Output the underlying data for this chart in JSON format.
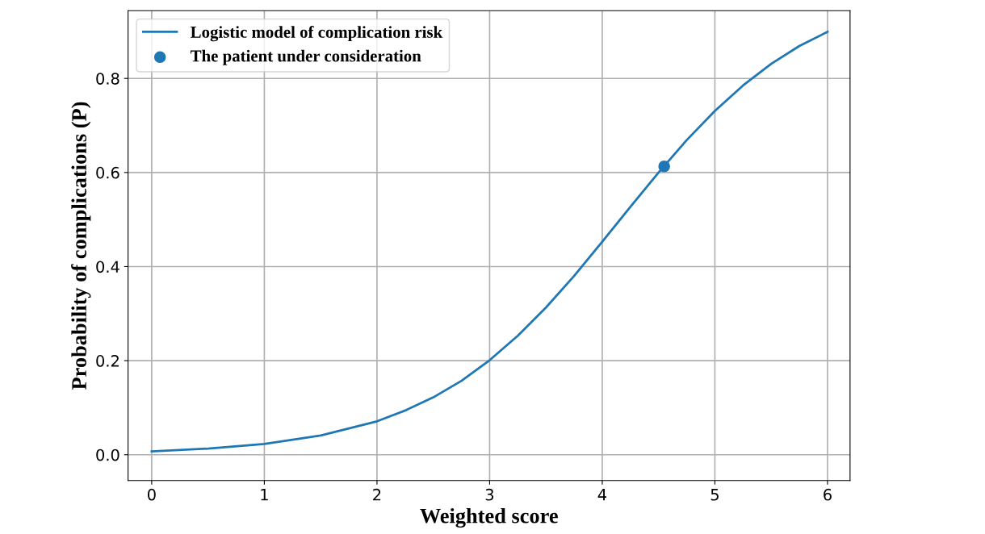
{
  "chart_data": {
    "type": "line",
    "xlabel": "Weighted score",
    "ylabel": "Probability of complications (P)",
    "x": [
      0,
      0.5,
      1,
      1.5,
      2,
      2.25,
      2.5,
      2.75,
      3,
      3.25,
      3.5,
      3.75,
      4,
      4.25,
      4.5,
      4.75,
      5,
      5.25,
      5.5,
      5.75,
      6
    ],
    "series": [
      {
        "name": "Logistic model of complication risk",
        "color": "#1f77b4",
        "values": [
          0.007,
          0.013,
          0.023,
          0.041,
          0.071,
          0.094,
          0.122,
          0.157,
          0.201,
          0.253,
          0.313,
          0.38,
          0.453,
          0.527,
          0.6,
          0.669,
          0.731,
          0.785,
          0.831,
          0.869,
          0.899
        ]
      },
      {
        "name": "The patient under consideration",
        "type": "scatter",
        "color": "#1f77b4",
        "x": [
          4.55
        ],
        "values": [
          0.613
        ],
        "marker": "circle"
      }
    ],
    "xlim": [
      -0.21,
      6.2
    ],
    "ylim": [
      -0.055,
      0.944
    ],
    "xticks": [
      0,
      1,
      2,
      3,
      4,
      5,
      6
    ],
    "yticks": [
      {
        "value": 0,
        "label": "0.0"
      },
      {
        "value": 0.2,
        "label": "0.2"
      },
      {
        "value": 0.4,
        "label": "0.4"
      },
      {
        "value": 0.6,
        "label": "0.6"
      },
      {
        "value": 0.8,
        "label": "0.8"
      }
    ],
    "grid": true,
    "legend": "top left"
  }
}
